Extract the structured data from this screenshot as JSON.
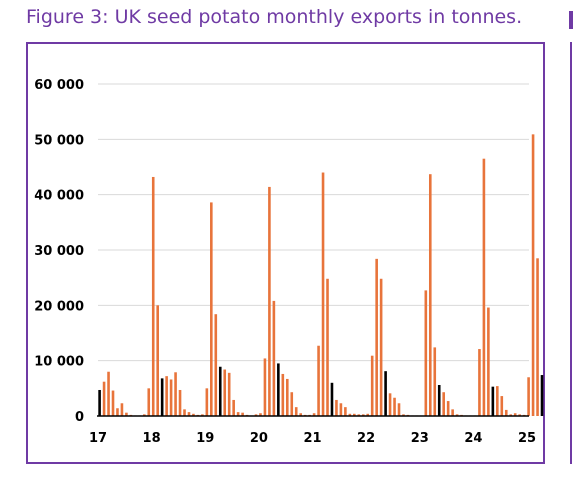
{
  "figure": {
    "title": "Figure 3: UK seed potato monthly exports in tonnes."
  },
  "colors": {
    "accent": "#6f3aa4",
    "bar": "#e8743b",
    "highlight_bar": "#000000"
  },
  "chart_data": {
    "type": "bar",
    "title": "Figure 3: UK seed potato monthly exports in tonnes.",
    "xlabel": "",
    "ylabel": "",
    "ylim": [
      0,
      60000
    ],
    "yticks": [
      "0",
      "10 000",
      "20 000",
      "30 000",
      "40 000",
      "50 000",
      "60 000"
    ],
    "xticks": [
      "17",
      "18",
      "19",
      "20",
      "21",
      "22",
      "23",
      "24",
      "25"
    ],
    "grid": "horizontal",
    "legend": "none",
    "note": "",
    "series": [
      {
        "name": "",
        "start_year_label": "17",
        "highlight_month_index": 0,
        "values": [
          4700,
          6200,
          8000,
          4600,
          1400,
          2300,
          600,
          200,
          100,
          100,
          300,
          5000,
          43200,
          20000,
          6800,
          7200,
          6600,
          7900,
          4700,
          1200,
          700,
          400,
          200,
          300,
          5000,
          38600,
          18400,
          8900,
          8400,
          7800,
          2900,
          700,
          600,
          200,
          100,
          300,
          500,
          10400,
          41400,
          20800,
          9500,
          7600,
          6700,
          4300,
          1600,
          500,
          200,
          200,
          500,
          12700,
          44000,
          24800,
          6000,
          2900,
          2300,
          1600,
          400,
          400,
          300,
          300,
          400,
          10900,
          28400,
          24800,
          8100,
          4100,
          3300,
          2300,
          300,
          200,
          100,
          100,
          100,
          22700,
          43700,
          12400,
          5600,
          4300,
          2700,
          1200,
          300,
          200,
          100,
          100,
          100,
          12100,
          46500,
          19600,
          5300,
          5400,
          3600,
          1100,
          300,
          500,
          300,
          200,
          7000,
          50900,
          28500,
          7400
        ],
        "highlight_indices": [
          0,
          14,
          27,
          40,
          52,
          64,
          76,
          88,
          99
        ]
      }
    ]
  }
}
